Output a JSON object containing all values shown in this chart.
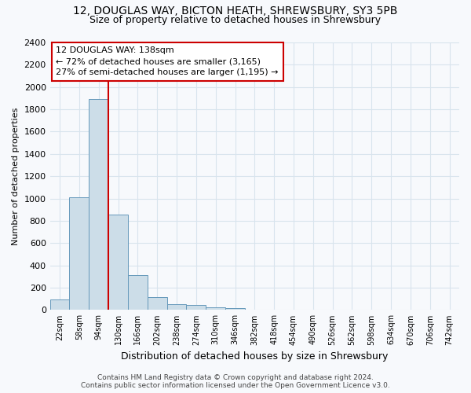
{
  "title_line1": "12, DOUGLAS WAY, BICTON HEATH, SHREWSBURY, SY3 5PB",
  "title_line2": "Size of property relative to detached houses in Shrewsbury",
  "xlabel": "Distribution of detached houses by size in Shrewsbury",
  "ylabel": "Number of detached properties",
  "bar_values": [
    95,
    1010,
    1890,
    855,
    310,
    115,
    55,
    48,
    25,
    20,
    0,
    0,
    0,
    0,
    0,
    0,
    0,
    0,
    0,
    0,
    0
  ],
  "bar_labels": [
    "22sqm",
    "58sqm",
    "94sqm",
    "130sqm",
    "166sqm",
    "202sqm",
    "238sqm",
    "274sqm",
    "310sqm",
    "346sqm",
    "382sqm",
    "418sqm",
    "454sqm",
    "490sqm",
    "526sqm",
    "562sqm",
    "598sqm",
    "634sqm",
    "670sqm",
    "706sqm",
    "742sqm"
  ],
  "bar_color": "#ccdde8",
  "bar_edge_color": "#6699bb",
  "vline_x": 2.5,
  "vline_color": "#cc0000",
  "annotation_line1": "12 DOUGLAS WAY: 138sqm",
  "annotation_line2": "← 72% of detached houses are smaller (3,165)",
  "annotation_line3": "27% of semi-detached houses are larger (1,195) →",
  "annotation_box_facecolor": "white",
  "annotation_box_edgecolor": "#cc0000",
  "ylim_max": 2400,
  "yticks": [
    0,
    200,
    400,
    600,
    800,
    1000,
    1200,
    1400,
    1600,
    1800,
    2000,
    2200,
    2400
  ],
  "footer_line1": "Contains HM Land Registry data © Crown copyright and database right 2024.",
  "footer_line2": "Contains public sector information licensed under the Open Government Licence v3.0.",
  "bg_color": "#f7f9fc",
  "grid_color": "#d8e4ed"
}
